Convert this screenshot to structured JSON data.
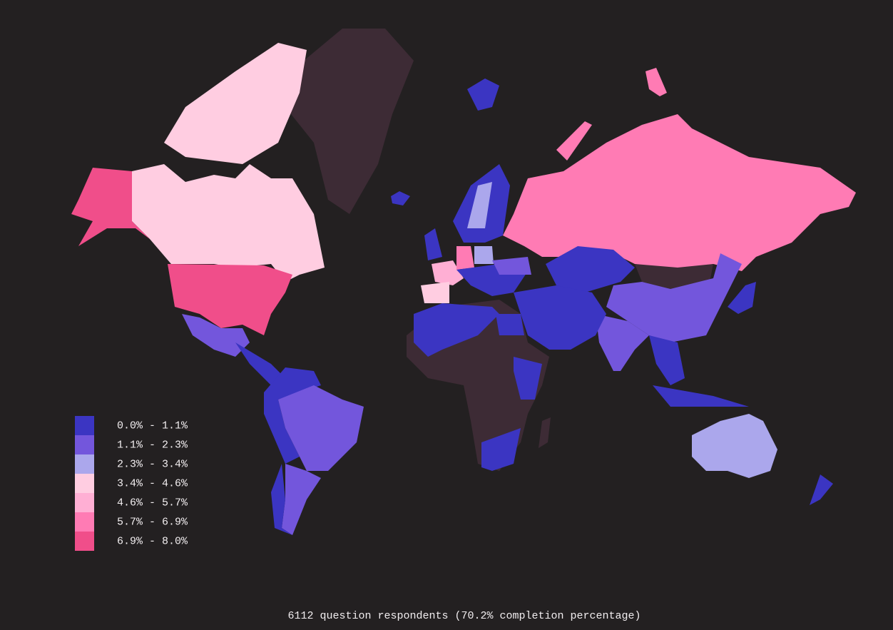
{
  "legend": {
    "items": [
      {
        "label": "0.0% - 1.1%",
        "color": "#3b35c2"
      },
      {
        "label": "1.1% - 2.3%",
        "color": "#7356dc"
      },
      {
        "label": "2.3% - 3.4%",
        "color": "#aba7ec"
      },
      {
        "label": "3.4% - 4.6%",
        "color": "#ffcde1"
      },
      {
        "label": "4.6% - 5.7%",
        "color": "#ffafd4"
      },
      {
        "label": "5.7% - 6.9%",
        "color": "#ff7bb4"
      },
      {
        "label": "6.9% - 8.0%",
        "color": "#f04e8a"
      }
    ]
  },
  "footer": "6112 question respondents (70.2% completion percentage)"
}
